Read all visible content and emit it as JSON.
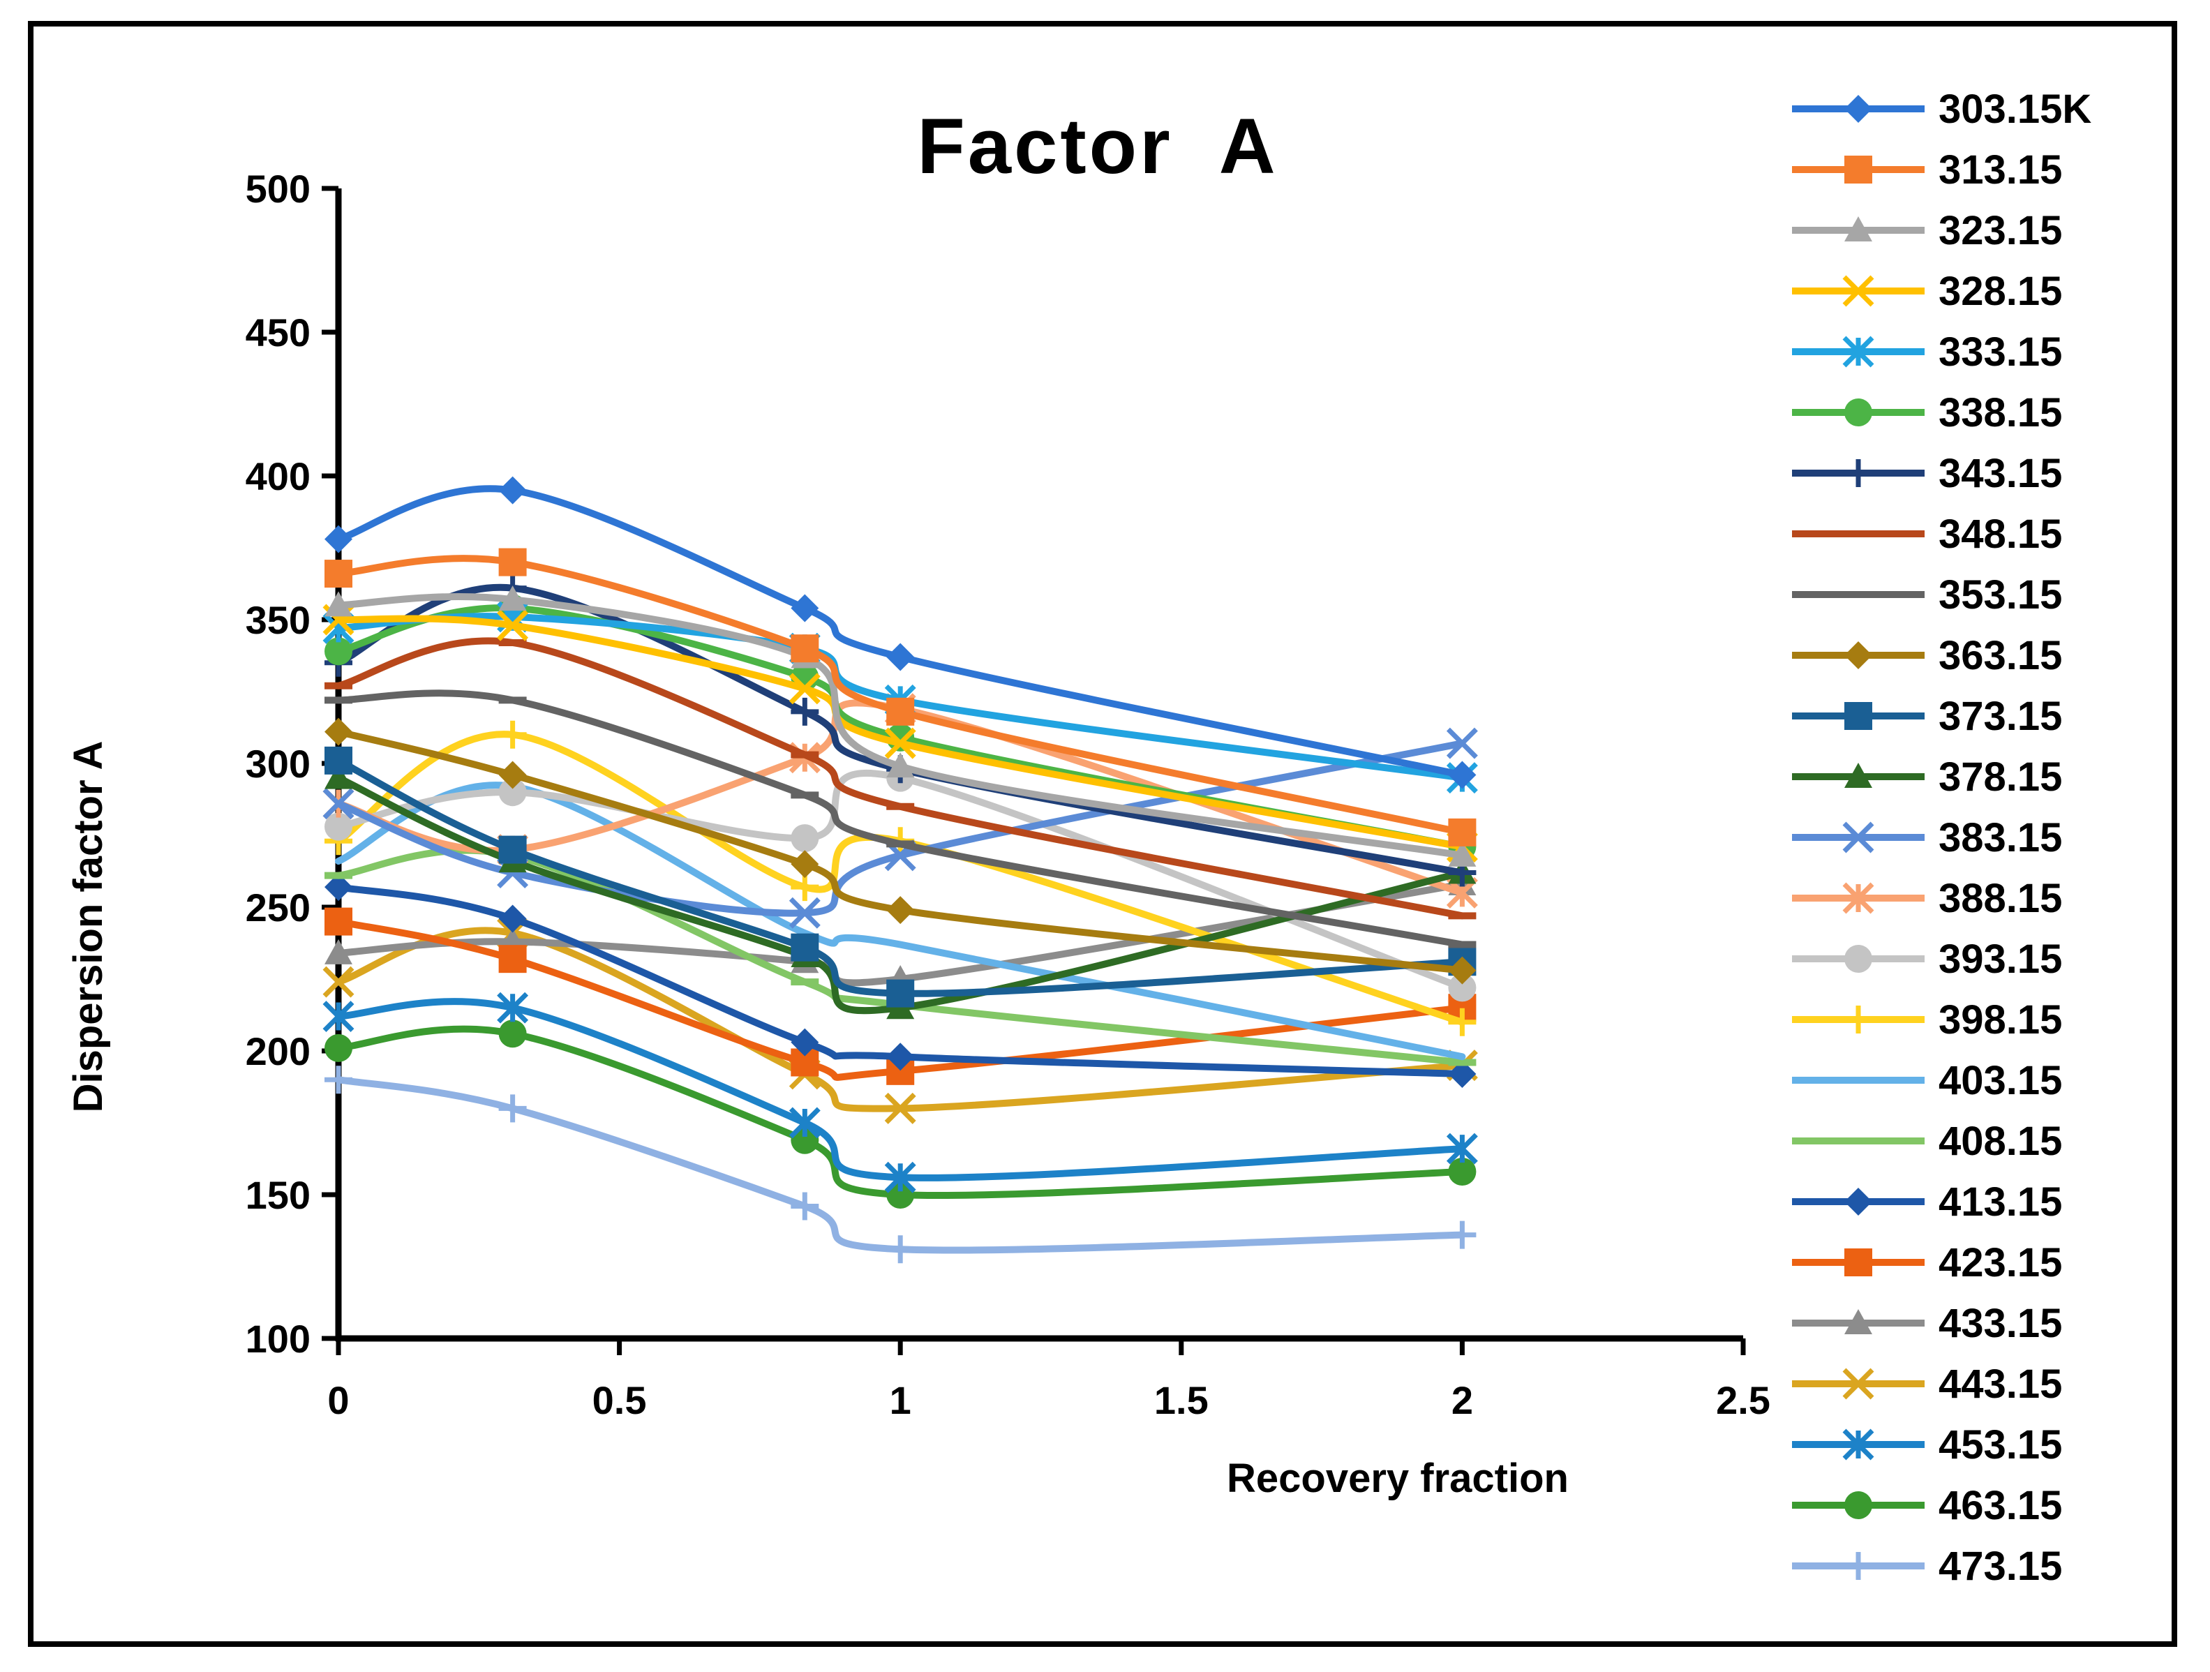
{
  "chart_data": {
    "type": "line",
    "title": "Factor  A",
    "xlabel": "Recovery fraction",
    "ylabel": "Dispersion factor A",
    "xlim": [
      0,
      2.5
    ],
    "ylim": [
      100,
      500
    ],
    "xticks": [
      0,
      0.5,
      1,
      1.5,
      2,
      2.5
    ],
    "yticks": [
      100,
      150,
      200,
      250,
      300,
      350,
      400,
      450,
      500
    ],
    "xtick_labels": [
      "0",
      "0.5",
      "1",
      "1.5",
      "2",
      "2.5"
    ],
    "ytick_labels": [
      "100",
      "150",
      "200",
      "250",
      "300",
      "350",
      "400",
      "450",
      "500"
    ],
    "grid": false,
    "legend_position": "right",
    "x": [
      0,
      0.31,
      0.83,
      1,
      2
    ],
    "series": [
      {
        "name": "303.15K",
        "values": [
          378,
          395,
          354,
          337,
          296
        ],
        "color": "#2E75D4",
        "marker": "diamond"
      },
      {
        "name": "313.15",
        "values": [
          366,
          370,
          340,
          318,
          276
        ],
        "color": "#F47C2C",
        "marker": "square"
      },
      {
        "name": "323.15",
        "values": [
          355,
          357,
          337,
          299,
          268
        ],
        "color": "#A6A6A6",
        "marker": "triangle"
      },
      {
        "name": "328.15",
        "values": [
          350,
          348,
          326,
          307,
          271
        ],
        "color": "#FFC000",
        "marker": "x"
      },
      {
        "name": "333.15",
        "values": [
          347,
          351,
          340,
          322,
          295
        ],
        "color": "#22A3E0",
        "marker": "asterisk"
      },
      {
        "name": "338.15",
        "values": [
          339,
          354,
          330,
          309,
          271
        ],
        "color": "#4CB446",
        "marker": "circle"
      },
      {
        "name": "343.15",
        "values": [
          335,
          361,
          318,
          298,
          262
        ],
        "color": "#1F3F78",
        "marker": "plus"
      },
      {
        "name": "348.15",
        "values": [
          327,
          342,
          303,
          285,
          247
        ],
        "color": "#B8481B",
        "marker": "dash"
      },
      {
        "name": "353.15",
        "values": [
          322,
          322,
          289,
          272,
          237
        ],
        "color": "#636363",
        "marker": "dash"
      },
      {
        "name": "363.15",
        "values": [
          311,
          296,
          265,
          249,
          228
        ],
        "color": "#A67C10",
        "marker": "diamond"
      },
      {
        "name": "373.15",
        "values": [
          301,
          270,
          236,
          220,
          231
        ],
        "color": "#1A5F94",
        "marker": "square"
      },
      {
        "name": "378.15",
        "values": [
          295,
          266,
          233,
          215,
          262
        ],
        "color": "#2E6B24",
        "marker": "triangle"
      },
      {
        "name": "383.15",
        "values": [
          286,
          262,
          248,
          268,
          307
        ],
        "color": "#5B8BD6",
        "marker": "x"
      },
      {
        "name": "388.15",
        "values": [
          286,
          270,
          302,
          319,
          255
        ],
        "color": "#F9A271",
        "marker": "asterisk"
      },
      {
        "name": "393.15",
        "values": [
          278,
          290,
          274,
          295,
          222
        ],
        "color": "#C4C4C4",
        "marker": "circle"
      },
      {
        "name": "398.15",
        "values": [
          273,
          310,
          257,
          273,
          210
        ],
        "color": "#FFD21F",
        "marker": "plus"
      },
      {
        "name": "403.15",
        "values": [
          266,
          292,
          241,
          237,
          198
        ],
        "color": "#63B1E8",
        "marker": "none"
      },
      {
        "name": "408.15",
        "values": [
          261,
          268,
          224,
          216,
          196
        ],
        "color": "#82C665",
        "marker": "dash"
      },
      {
        "name": "413.15",
        "values": [
          257,
          246,
          203,
          198,
          192
        ],
        "color": "#1E57A8",
        "marker": "diamond"
      },
      {
        "name": "423.15",
        "values": [
          245,
          232,
          196,
          193,
          215
        ],
        "color": "#EC6112",
        "marker": "square"
      },
      {
        "name": "433.15",
        "values": [
          234,
          238,
          231,
          225,
          258
        ],
        "color": "#8C8C8C",
        "marker": "triangle"
      },
      {
        "name": "443.15",
        "values": [
          224,
          241,
          192,
          180,
          195
        ],
        "color": "#DAA520",
        "marker": "x"
      },
      {
        "name": "453.15",
        "values": [
          212,
          215,
          175,
          156,
          166
        ],
        "color": "#1D82C8",
        "marker": "asterisk"
      },
      {
        "name": "463.15",
        "values": [
          201,
          206,
          169,
          150,
          158
        ],
        "color": "#3A9A2F",
        "marker": "circle"
      },
      {
        "name": "473.15",
        "values": [
          190,
          180,
          146,
          131,
          136
        ],
        "color": "#8FB1E3",
        "marker": "plus"
      }
    ]
  }
}
